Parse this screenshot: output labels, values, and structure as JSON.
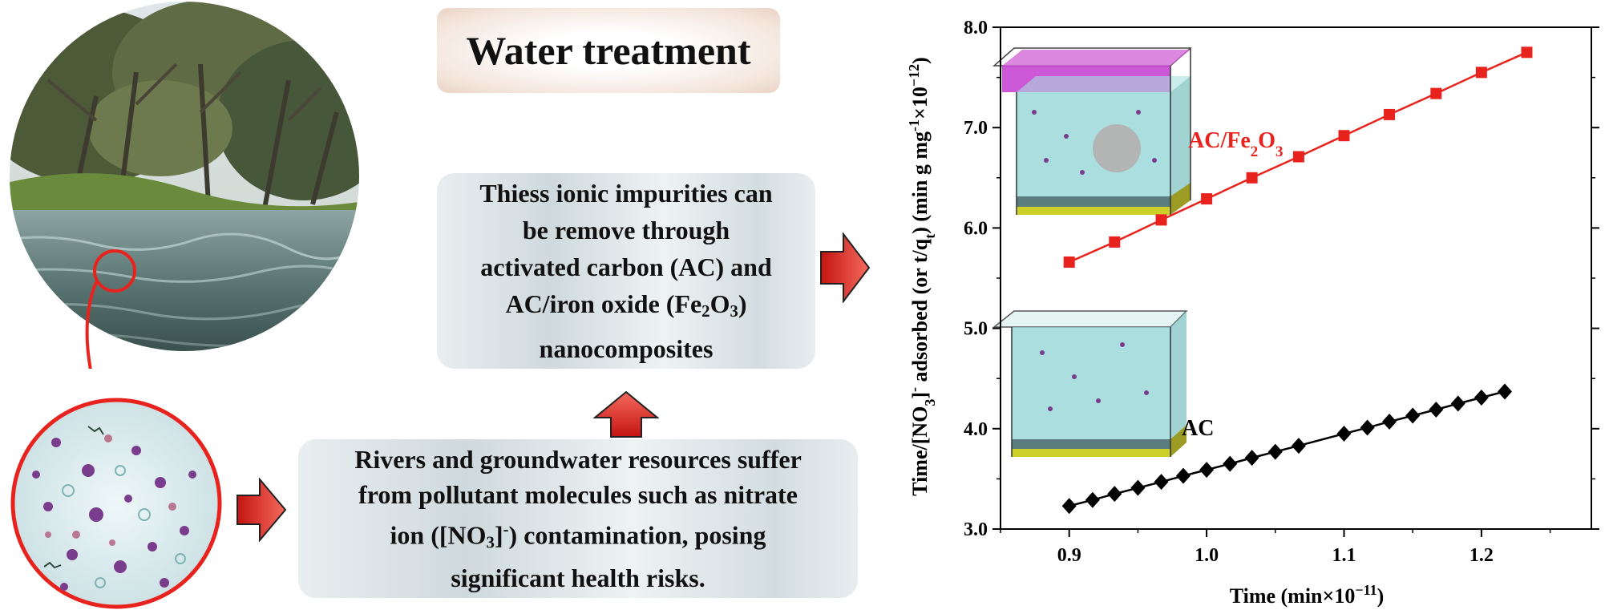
{
  "title": "Water treatment",
  "boxes": {
    "remove_text_parts": [
      "Thiess ionic impurities can",
      "be remove through",
      "activated carbon (AC) and",
      "AC/iron oxide (Fe",
      "2",
      "O",
      "3",
      ")",
      "nanocomposites"
    ],
    "rivers_text_parts": [
      "Rivers and groundwater resources suffer",
      "from pollutant molecules such as nitrate",
      "ion ([NO",
      "3",
      "]",
      "-",
      ") contamination, posing",
      "significant health risks."
    ]
  },
  "chart_data": {
    "type": "line",
    "xlabel_parts": [
      "Time (min×10",
      "−11",
      ")"
    ],
    "ylabel_parts": [
      "Time/[NO",
      "3",
      "]",
      "-",
      " adsorbed (or t/q",
      "t",
      ") (min g mg",
      "-1",
      "×10",
      "−12",
      ")"
    ],
    "xlim": [
      0.85,
      1.28
    ],
    "ylim": [
      3.0,
      8.0
    ],
    "x_ticks": [
      0.9,
      1.0,
      1.1,
      1.2
    ],
    "x_tick_labels": [
      "0.9",
      "1.0",
      "1.1",
      "1.2"
    ],
    "y_ticks": [
      3.0,
      4.0,
      5.0,
      6.0,
      7.0,
      8.0
    ],
    "y_tick_labels": [
      "3.0",
      "4.0",
      "5.0",
      "6.0",
      "7.0",
      "8.0"
    ],
    "series": [
      {
        "name": "AC/Fe2O3",
        "label_parts": [
          "AC/Fe",
          "2",
          "O",
          "3"
        ],
        "color": "#e8231e",
        "marker": "square",
        "x": [
          0.9,
          0.933,
          0.967,
          1.0,
          1.033,
          1.067,
          1.1,
          1.133,
          1.167,
          1.2,
          1.233
        ],
        "y": [
          5.66,
          5.86,
          6.08,
          6.29,
          6.5,
          6.71,
          6.92,
          7.13,
          7.34,
          7.55,
          7.75
        ]
      },
      {
        "name": "AC",
        "label_parts": [
          "AC"
        ],
        "color": "#000000",
        "marker": "diamond",
        "x": [
          0.9,
          0.917,
          0.933,
          0.95,
          0.967,
          0.983,
          1.0,
          1.017,
          1.033,
          1.05,
          1.067,
          1.1,
          1.117,
          1.133,
          1.15,
          1.167,
          1.183,
          1.2,
          1.217
        ],
        "y": [
          3.23,
          3.29,
          3.35,
          3.41,
          3.47,
          3.53,
          3.59,
          3.65,
          3.71,
          3.77,
          3.83,
          3.95,
          4.01,
          4.07,
          4.13,
          4.19,
          4.25,
          4.31,
          4.37
        ]
      }
    ]
  },
  "colors": {
    "arrow_red": "#e8231e",
    "water_teal": "#8fd3d3",
    "magenta_layer": "#c43bd0",
    "yellow_layer": "#cfcf2a"
  }
}
